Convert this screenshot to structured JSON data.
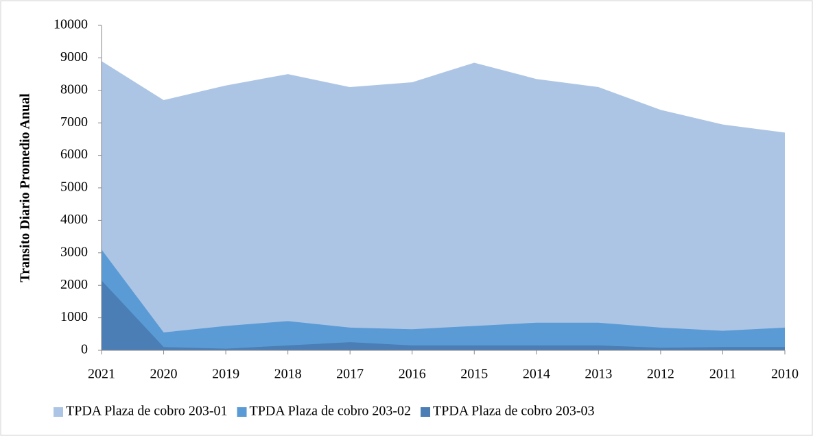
{
  "chart_data": {
    "type": "area",
    "ylabel": "Transito Diario Promedio  Anual",
    "categories": [
      "2021",
      "2020",
      "2019",
      "2018",
      "2017",
      "2016",
      "2015",
      "2014",
      "2013",
      "2012",
      "2011",
      "2010"
    ],
    "series": [
      {
        "name": "TPDA Plaza de cobro 203-01",
        "color": "#adc5e5",
        "values": [
          8900,
          7700,
          8150,
          8500,
          8100,
          8250,
          8850,
          8350,
          8100,
          7400,
          6950,
          6700
        ]
      },
      {
        "name": "TPDA Plaza de cobro 203-02",
        "color": "#5b9bd5",
        "values": [
          3100,
          550,
          750,
          900,
          700,
          650,
          750,
          850,
          850,
          700,
          600,
          700
        ]
      },
      {
        "name": "TPDA Plaza de cobro 203-03",
        "color": "#4a7eb5",
        "values": [
          2150,
          100,
          50,
          150,
          250,
          150,
          150,
          150,
          150,
          80,
          100,
          100
        ]
      }
    ],
    "ylim": [
      0,
      10000
    ],
    "yticks": [
      0,
      1000,
      2000,
      3000,
      4000,
      5000,
      6000,
      7000,
      8000,
      9000,
      10000
    ],
    "legend": "bottom"
  }
}
